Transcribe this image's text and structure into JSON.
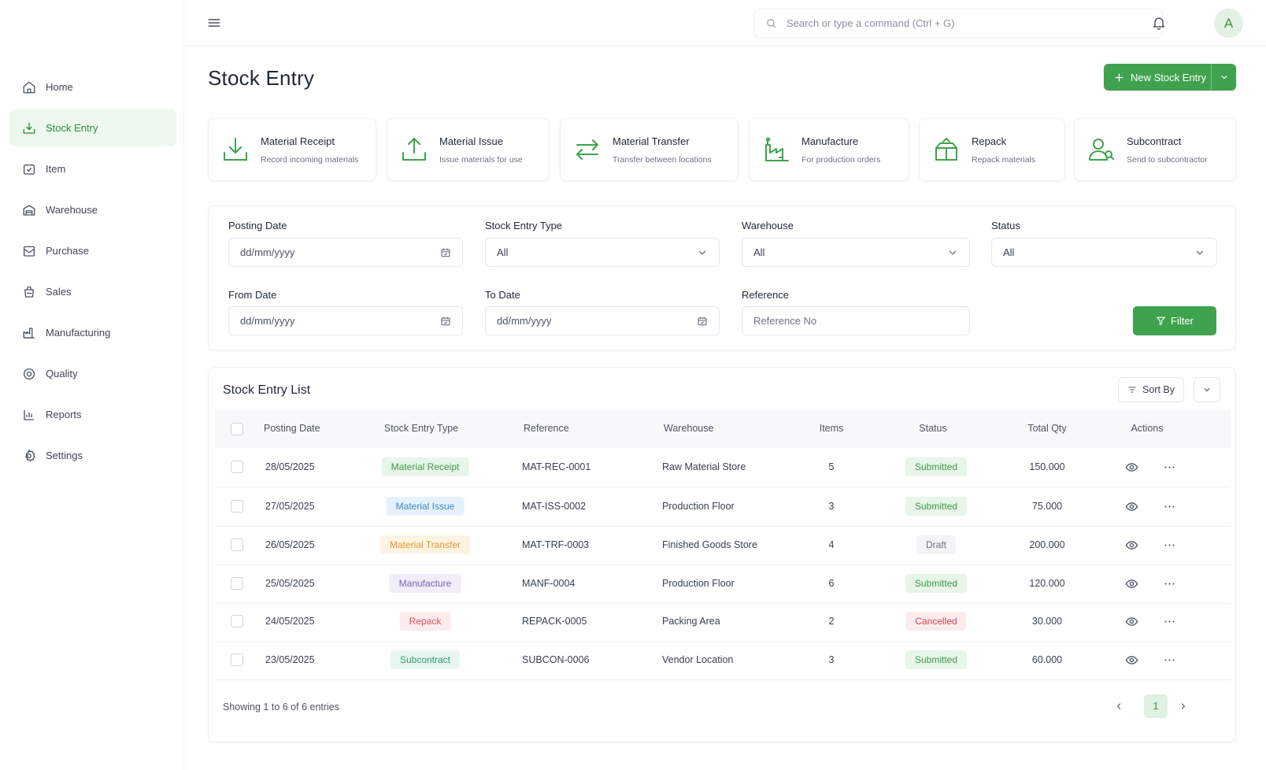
{
  "sidebar": {
    "items": [
      {
        "label": "Home",
        "icon": "home-icon"
      },
      {
        "label": "Stock Entry",
        "icon": "stock-entry-icon",
        "active": true
      },
      {
        "label": "Item",
        "icon": "item-icon"
      },
      {
        "label": "Warehouse",
        "icon": "warehouse-icon"
      },
      {
        "label": "Purchase",
        "icon": "purchase-icon"
      },
      {
        "label": "Sales",
        "icon": "sales-icon"
      },
      {
        "label": "Manufacturing",
        "icon": "manufacturing-icon"
      },
      {
        "label": "Quality",
        "icon": "quality-icon"
      },
      {
        "label": "Reports",
        "icon": "reports-icon"
      },
      {
        "label": "Settings",
        "icon": "settings-icon"
      }
    ]
  },
  "topbar": {
    "search_placeholder": "Search or type a command (Ctrl + G)",
    "avatar_initial": "A"
  },
  "page": {
    "title": "Stock Entry",
    "new_button_label": "New Stock Entry"
  },
  "entry_types": [
    {
      "title": "Material Receipt",
      "subtitle": "Record incoming materials",
      "icon": "material-receipt-icon"
    },
    {
      "title": "Material Issue",
      "subtitle": "Issue materials for use",
      "icon": "material-issue-icon"
    },
    {
      "title": "Material Transfer",
      "subtitle": "Transfer between locations",
      "icon": "material-transfer-icon"
    },
    {
      "title": "Manufacture",
      "subtitle": "For production orders",
      "icon": "manufacture-icon"
    },
    {
      "title": "Repack",
      "subtitle": "Repack materials",
      "icon": "repack-icon"
    },
    {
      "title": "Subcontract",
      "subtitle": "Send to subcontractor",
      "icon": "subcontract-icon"
    }
  ],
  "filters": {
    "posting_date": {
      "label": "Posting Date",
      "placeholder": "dd/mm/yyyy"
    },
    "stock_entry_type": {
      "label": "Stock Entry Type",
      "value": "All"
    },
    "warehouse": {
      "label": "Warehouse",
      "value": "All"
    },
    "status": {
      "label": "Status",
      "value": "All"
    },
    "from_date": {
      "label": "From Date",
      "placeholder": "dd/mm/yyyy"
    },
    "to_date": {
      "label": "To Date",
      "placeholder": "dd/mm/yyyy"
    },
    "reference": {
      "label": "Reference",
      "placeholder": "Reference No"
    },
    "filter_button_label": "Filter"
  },
  "list": {
    "title": "Stock Entry List",
    "sort_label": "Sort By",
    "columns": [
      "Posting Date",
      "Stock Entry Type",
      "Reference",
      "Warehouse",
      "Items",
      "Status",
      "Total Qty",
      "Actions"
    ],
    "rows": [
      {
        "date": "28/05/2025",
        "type": "Material Receipt",
        "reference": "MAT-REC-0001",
        "warehouse": "Raw Material Store",
        "items": "5",
        "status": "Submitted",
        "total_qty": "150.000"
      },
      {
        "date": "27/05/2025",
        "type": "Material Issue",
        "reference": "MAT-ISS-0002",
        "warehouse": "Production Floor",
        "items": "3",
        "status": "Submitted",
        "total_qty": "75.000"
      },
      {
        "date": "26/05/2025",
        "type": "Material Transfer",
        "reference": "MAT-TRF-0003",
        "warehouse": "Finished Goods Store",
        "items": "4",
        "status": "Draft",
        "total_qty": "200.000"
      },
      {
        "date": "25/05/2025",
        "type": "Manufacture",
        "reference": "MANF-0004",
        "warehouse": "Production Floor",
        "items": "6",
        "status": "Submitted",
        "total_qty": "120.000"
      },
      {
        "date": "24/05/2025",
        "type": "Repack",
        "reference": "REPACK-0005",
        "warehouse": "Packing Area",
        "items": "2",
        "status": "Cancelled",
        "total_qty": "30.000"
      },
      {
        "date": "23/05/2025",
        "type": "Subcontract",
        "reference": "SUBCON-0006",
        "warehouse": "Vendor Location",
        "items": "3",
        "status": "Submitted",
        "total_qty": "60.000"
      }
    ],
    "showing_text": "Showing 1 to 6 of 6 entries",
    "current_page": "1"
  },
  "colors": {
    "accent": "#3fa34d",
    "type_tags": {
      "Material Receipt": {
        "bg": "#e8f5e9",
        "fg": "#3d9a47"
      },
      "Material Issue": {
        "bg": "#e6f2fb",
        "fg": "#3f86c4"
      },
      "Material Transfer": {
        "bg": "#fdf3e2",
        "fg": "#e39a2b"
      },
      "Manufacture": {
        "bg": "#f1edf9",
        "fg": "#7c63b8"
      },
      "Repack": {
        "bg": "#fdecee",
        "fg": "#e0505e"
      },
      "Subcontract": {
        "bg": "#e8f6f0",
        "fg": "#2f9d6a"
      }
    },
    "status_tags": {
      "Submitted": {
        "bg": "#e8f5e9",
        "fg": "#3d9a47"
      },
      "Draft": {
        "bg": "#f3f4f6",
        "fg": "#6b7280"
      },
      "Cancelled": {
        "bg": "#fdecee",
        "fg": "#d9434f"
      }
    }
  }
}
